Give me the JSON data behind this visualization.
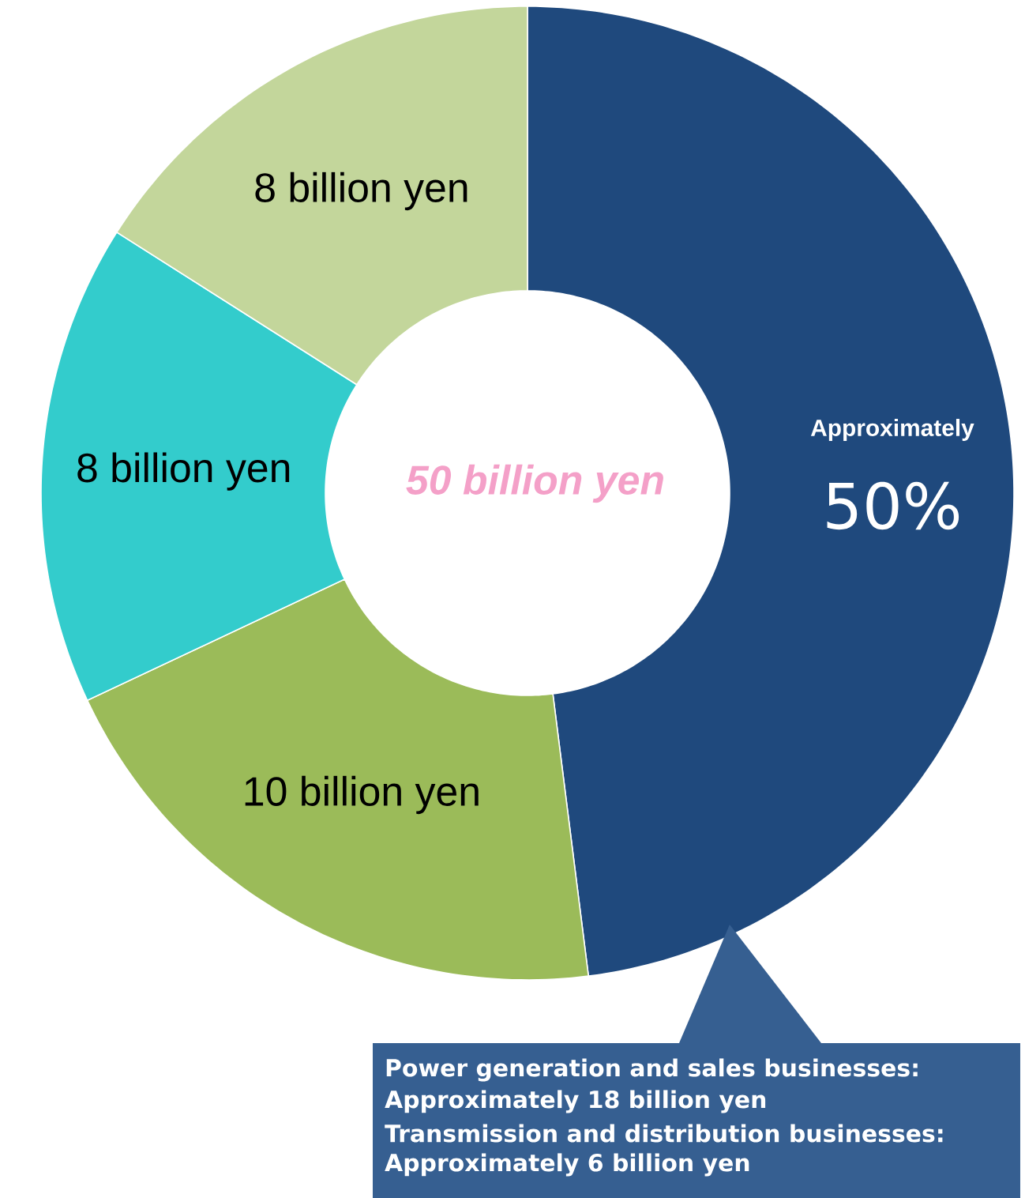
{
  "chart_data": {
    "type": "donut",
    "categories": [
      null,
      null,
      null,
      null
    ],
    "values": [
      24,
      10,
      8,
      8
    ],
    "colors": [
      "#1f497d",
      "#9bbb59",
      "#33cccc",
      "#c3d69b"
    ],
    "value_labels": [
      null,
      "10 billion yen",
      "8 billion yen",
      "8 billion yen"
    ],
    "annotations": [
      "50 billion yen",
      "Approximately",
      "50%",
      "Power generation and sales businesses:",
      "Approximately 18 billion yen",
      "Transmission and distribution businesses:",
      "Approximately 6 billion yen"
    ],
    "legend": false
  }
}
